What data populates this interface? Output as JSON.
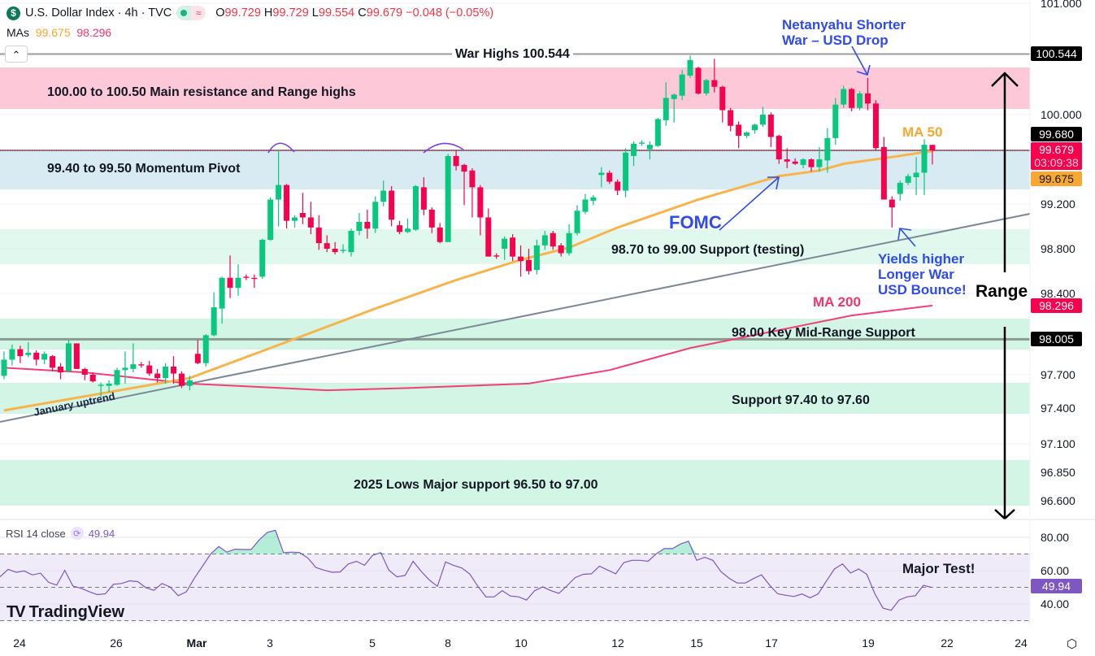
{
  "header": {
    "symbol_icon": "dollar-circle-icon",
    "symbol_glyph": "$",
    "title": "U.S. Dollar Index · 4h · TVC",
    "market_status_icon": "market-open-dot-icon",
    "delay_icon": "approx-icon",
    "delay_glyph": "≈",
    "open_label": "O",
    "open": "99.729",
    "high_label": "H",
    "high": "99.729",
    "low_label": "L",
    "low": "99.554",
    "close_label": "C",
    "close": "99.679",
    "change": "−0.048 (−0.05%)",
    "mas_label": "MAs",
    "ma50_value": "99.675",
    "ma200_value": "98.296",
    "collapse_glyph": "⌃"
  },
  "colors": {
    "up": "#08c77e",
    "down": "#f7004e",
    "ma50": "#f8b44b",
    "ma200": "#f23e7a",
    "rsi": "#7e57c2",
    "annotation_blue": "#2f4bef",
    "resistance_zone": "#fdc9d9",
    "pivot_zone": "#d8ebf3",
    "support_zone": "#d3f5e6"
  },
  "price_axis": {
    "ticks": [
      "101.000",
      "100.000",
      "99.200",
      "98.800",
      "98.400",
      "97.700",
      "97.400",
      "97.100",
      "96.850",
      "96.600"
    ],
    "badges": {
      "war_high": "100.544",
      "crosshair": "99.680",
      "last_price": "99.679",
      "countdown": "03:09:38",
      "ma50": "99.675",
      "ma200": "98.296",
      "mid_range": "98.005"
    }
  },
  "time_axis": {
    "labels": [
      "24",
      "26",
      "Mar",
      "3",
      "5",
      "8",
      "10",
      "12",
      "15",
      "17",
      "19",
      "22",
      "24"
    ],
    "settings_icon": "settings-hex-icon"
  },
  "annotations": {
    "war_highs": "War Highs 100.544",
    "resistance": "100.00 to 100.50 Main resistance and Range highs",
    "pivot": "99.40 to 99.50 Momentum Pivot",
    "support_testing": "98.70 to 99.00 Support (testing)",
    "mid_range": "98.00 Key Mid-Range Support",
    "support_976": "Support 97.40 to 97.60",
    "lows_2025": "2025 Lows Major support 96.50 to 97.00",
    "ma50_label": "MA 50",
    "ma200_label": "MA 200",
    "fomc": "FOMC",
    "netanyahu_line1": "Netanyahu Shorter",
    "netanyahu_line2": "War – USD Drop",
    "yields_line1": "Yields higher",
    "yields_line2": "Longer War",
    "yields_line3": "USD Bounce!",
    "range": "Range",
    "january_uptrend": "January uptrend",
    "major_test": "Major Test!"
  },
  "rsi": {
    "label": "RSI 14 close",
    "value": "49.94",
    "ticks": [
      "80.00",
      "60.00",
      "40.00"
    ]
  },
  "watermark": "TradingView",
  "chart_data": {
    "type": "candlestick",
    "title": "U.S. Dollar Index · 4h · TVC",
    "ylim": [
      96.6,
      101.0
    ],
    "scale": "log",
    "grid": true,
    "zones": [
      {
        "label": "100.00 to 100.50 Main resistance and Range highs",
        "from": 100.0,
        "to": 100.5
      },
      {
        "label": "99.40 to 99.50 Momentum Pivot",
        "from": 99.4,
        "to": 99.5
      },
      {
        "label": "98.70 to 99.00 Support (testing)",
        "from": 98.7,
        "to": 99.0
      },
      {
        "label": "98.00 Key Mid-Range Support",
        "from": 97.95,
        "to": 98.05
      },
      {
        "label": "Support 97.40 to 97.60",
        "from": 97.4,
        "to": 97.6
      },
      {
        "label": "2025 Lows Major support 96.50 to 97.00",
        "from": 96.5,
        "to": 97.0
      }
    ],
    "horizontal_lines": [
      100.544,
      99.68,
      98.005
    ],
    "ohlc": [
      [
        97.69,
        97.9,
        97.66,
        97.83
      ],
      [
        97.83,
        97.96,
        97.78,
        97.92
      ],
      [
        97.92,
        97.95,
        97.8,
        97.86
      ],
      [
        97.87,
        97.98,
        97.85,
        97.89
      ],
      [
        97.89,
        97.91,
        97.78,
        97.83
      ],
      [
        97.83,
        97.9,
        97.79,
        97.88
      ],
      [
        97.86,
        97.87,
        97.73,
        97.76
      ],
      [
        97.77,
        97.8,
        97.66,
        97.72
      ],
      [
        97.73,
        98.0,
        97.72,
        97.97
      ],
      [
        97.97,
        97.97,
        97.75,
        97.75
      ],
      [
        97.75,
        97.76,
        97.65,
        97.7
      ],
      [
        97.7,
        97.72,
        97.63,
        97.64
      ],
      [
        97.6,
        97.63,
        97.5,
        97.61
      ],
      [
        97.6,
        97.65,
        97.54,
        97.62
      ],
      [
        97.61,
        97.76,
        97.6,
        97.74
      ],
      [
        97.74,
        97.9,
        97.62,
        97.76
      ],
      [
        97.75,
        97.97,
        97.72,
        97.79
      ],
      [
        97.79,
        97.81,
        97.76,
        97.78
      ],
      [
        97.78,
        97.82,
        97.69,
        97.71
      ],
      [
        97.71,
        97.75,
        97.63,
        97.67
      ],
      [
        97.67,
        97.8,
        97.62,
        97.77
      ],
      [
        97.77,
        97.86,
        97.62,
        97.71
      ],
      [
        97.71,
        97.73,
        97.58,
        97.6
      ],
      [
        97.6,
        97.69,
        97.56,
        97.65
      ],
      [
        97.88,
        98.0,
        97.79,
        97.8
      ],
      [
        97.8,
        98.05,
        97.77,
        98.04
      ],
      [
        98.04,
        98.41,
        98.03,
        98.28
      ],
      [
        98.27,
        98.55,
        98.14,
        98.54
      ],
      [
        98.54,
        98.74,
        98.36,
        98.45
      ],
      [
        98.45,
        98.66,
        98.38,
        98.54
      ],
      [
        98.55,
        98.57,
        98.52,
        98.54
      ],
      [
        98.54,
        98.57,
        98.45,
        98.53
      ],
      [
        98.55,
        98.89,
        98.53,
        98.88
      ],
      [
        98.88,
        99.26,
        98.87,
        99.24
      ],
      [
        99.24,
        99.68,
        99.0,
        99.37
      ],
      [
        99.37,
        99.38,
        98.98,
        99.05
      ],
      [
        99.05,
        99.1,
        98.99,
        99.08
      ],
      [
        99.12,
        99.3,
        99.02,
        99.08
      ],
      [
        99.08,
        99.22,
        98.93,
        98.99
      ],
      [
        98.99,
        99.1,
        98.79,
        98.85
      ],
      [
        98.85,
        98.92,
        98.77,
        98.8
      ],
      [
        98.8,
        98.86,
        98.75,
        98.77
      ],
      [
        98.78,
        98.84,
        98.76,
        98.79
      ],
      [
        98.77,
        98.98,
        98.73,
        98.96
      ],
      [
        98.96,
        99.12,
        98.92,
        99.04
      ],
      [
        99.04,
        99.15,
        98.89,
        98.98
      ],
      [
        98.98,
        99.27,
        98.94,
        99.22
      ],
      [
        99.22,
        99.41,
        99.18,
        99.32
      ],
      [
        99.32,
        99.36,
        99.0,
        99.06
      ],
      [
        99.01,
        99.05,
        98.93,
        98.95
      ],
      [
        98.95,
        99.07,
        98.94,
        98.98
      ],
      [
        98.97,
        99.37,
        98.96,
        99.36
      ],
      [
        99.35,
        99.44,
        99.1,
        99.15
      ],
      [
        99.15,
        99.17,
        98.94,
        98.99
      ],
      [
        98.99,
        99.03,
        98.85,
        98.86
      ],
      [
        98.86,
        99.65,
        98.86,
        99.63
      ],
      [
        99.63,
        99.68,
        99.5,
        99.54
      ],
      [
        99.55,
        99.56,
        99.19,
        99.49
      ],
      [
        99.5,
        99.52,
        99.08,
        99.35
      ],
      [
        99.35,
        99.37,
        98.92,
        99.08
      ],
      [
        99.08,
        99.16,
        98.73,
        98.73
      ],
      [
        98.74,
        98.76,
        98.71,
        98.73
      ],
      [
        98.8,
        98.91,
        98.7,
        98.89
      ],
      [
        98.9,
        98.93,
        98.69,
        98.73
      ],
      [
        98.73,
        98.83,
        98.55,
        98.69
      ],
      [
        98.7,
        98.8,
        98.57,
        98.6
      ],
      [
        98.61,
        98.88,
        98.57,
        98.83
      ],
      [
        98.83,
        98.96,
        98.79,
        98.92
      ],
      [
        98.94,
        98.96,
        98.79,
        98.82
      ],
      [
        98.83,
        98.85,
        98.73,
        98.76
      ],
      [
        98.76,
        99.02,
        98.74,
        98.94
      ],
      [
        98.94,
        99.19,
        98.92,
        99.14
      ],
      [
        99.13,
        99.29,
        99.11,
        99.24
      ],
      [
        99.23,
        99.28,
        99.19,
        99.26
      ],
      [
        99.46,
        99.53,
        99.35,
        99.48
      ],
      [
        99.48,
        99.5,
        99.38,
        99.4
      ],
      [
        99.4,
        99.42,
        99.28,
        99.32
      ],
      [
        99.32,
        99.7,
        99.26,
        99.66
      ],
      [
        99.63,
        99.76,
        99.54,
        99.74
      ],
      [
        99.74,
        99.77,
        99.72,
        99.75
      ],
      [
        99.69,
        99.76,
        99.6,
        99.73
      ],
      [
        99.72,
        99.97,
        99.71,
        99.96
      ],
      [
        99.95,
        100.29,
        99.9,
        100.15
      ],
      [
        100.14,
        100.19,
        99.93,
        100.18
      ],
      [
        100.17,
        100.4,
        100.13,
        100.36
      ],
      [
        100.35,
        100.53,
        100.33,
        100.49
      ],
      [
        100.42,
        100.43,
        100.18,
        100.19
      ],
      [
        100.19,
        100.32,
        100.17,
        100.31
      ],
      [
        100.31,
        100.5,
        100.2,
        100.25
      ],
      [
        100.25,
        100.26,
        99.93,
        100.04
      ],
      [
        100.04,
        100.06,
        99.85,
        99.9
      ],
      [
        99.91,
        99.94,
        99.7,
        99.81
      ],
      [
        99.81,
        99.85,
        99.79,
        99.84
      ],
      [
        99.86,
        99.92,
        99.83,
        99.91
      ],
      [
        99.91,
        100.07,
        99.89,
        100.0
      ],
      [
        100.0,
        100.02,
        99.71,
        99.8
      ],
      [
        99.81,
        99.82,
        99.56,
        99.6
      ],
      [
        99.6,
        99.7,
        99.52,
        99.58
      ],
      [
        99.58,
        99.61,
        99.55,
        99.56
      ],
      [
        99.55,
        99.61,
        99.52,
        99.6
      ],
      [
        99.6,
        99.61,
        99.49,
        99.53
      ],
      [
        99.53,
        99.71,
        99.49,
        99.6
      ],
      [
        99.59,
        99.88,
        99.48,
        99.79
      ],
      [
        99.79,
        100.15,
        99.73,
        100.09
      ],
      [
        100.09,
        100.26,
        100.06,
        100.23
      ],
      [
        100.23,
        100.24,
        100.03,
        100.06
      ],
      [
        100.06,
        100.21,
        100.04,
        100.19
      ],
      [
        100.19,
        100.33,
        100.04,
        100.1
      ],
      [
        100.1,
        100.13,
        99.68,
        99.7
      ],
      [
        99.71,
        99.8,
        99.24,
        99.24
      ],
      [
        99.24,
        99.27,
        98.99,
        99.17
      ],
      [
        99.29,
        99.41,
        99.23,
        99.39
      ],
      [
        99.39,
        99.47,
        99.37,
        99.45
      ],
      [
        99.44,
        99.62,
        99.28,
        99.48
      ],
      [
        99.48,
        99.78,
        99.28,
        99.73
      ],
      [
        99.729,
        99.729,
        99.554,
        99.679
      ]
    ],
    "ma50": [
      [
        0,
        97.38
      ],
      [
        23,
        97.67
      ],
      [
        33,
        97.93
      ],
      [
        46,
        98.27
      ],
      [
        56,
        98.52
      ],
      [
        64,
        98.7
      ],
      [
        70,
        98.81
      ],
      [
        76,
        98.99
      ],
      [
        86,
        99.24
      ],
      [
        96,
        99.45
      ],
      [
        101,
        99.5
      ],
      [
        104,
        99.56
      ],
      [
        110,
        99.62
      ],
      [
        115,
        99.675
      ]
    ],
    "ma200": [
      [
        0,
        97.76
      ],
      [
        10,
        97.72
      ],
      [
        23,
        97.62
      ],
      [
        40,
        97.56
      ],
      [
        50,
        97.58
      ],
      [
        65,
        97.62
      ],
      [
        75,
        97.74
      ],
      [
        85,
        97.93
      ],
      [
        95,
        98.07
      ],
      [
        105,
        98.21
      ],
      [
        115,
        98.296
      ]
    ],
    "rsi_series": [
      56.3,
      60.8,
      59,
      59.8,
      57.4,
      58.5,
      53,
      51.3,
      60.2,
      50.8,
      49.4,
      47.4,
      45.6,
      46.1,
      51.8,
      52.3,
      53.9,
      53.4,
      49.8,
      48.2,
      52.3,
      50.2,
      45,
      47.3,
      55.5,
      62.7,
      70,
      74.5,
      71.1,
      72.9,
      72.7,
      72.7,
      78.5,
      83,
      84.2,
      70.8,
      71.1,
      70.8,
      67.6,
      61.9,
      60.3,
      59,
      59.2,
      64,
      65.6,
      63.2,
      69.2,
      70.8,
      60.3,
      56.3,
      57.1,
      65.6,
      59.5,
      54.4,
      50.6,
      65.2,
      63.1,
      61.6,
      57.9,
      50.6,
      44.2,
      44.3,
      48,
      44.8,
      44.3,
      42.4,
      48,
      50.3,
      48,
      46.4,
      51,
      55.8,
      57.8,
      58.1,
      62.7,
      60.4,
      58.1,
      64.8,
      66.2,
      66.2,
      65.6,
      70.1,
      73.2,
      73.2,
      76,
      77.6,
      66.2,
      68,
      66.2,
      59.4,
      55.4,
      52.6,
      52.6,
      55.2,
      57.5,
      51.3,
      46.1,
      45.2,
      44.5,
      46,
      43.7,
      46.1,
      53.7,
      61,
      64,
      58.6,
      61,
      57.8,
      46.1,
      37.5,
      36.2,
      42.4,
      44.3,
      45,
      51.2,
      49.94
    ],
    "rsi_levels": [
      70,
      50,
      30
    ],
    "rsi_ylim": [
      30,
      80
    ]
  }
}
